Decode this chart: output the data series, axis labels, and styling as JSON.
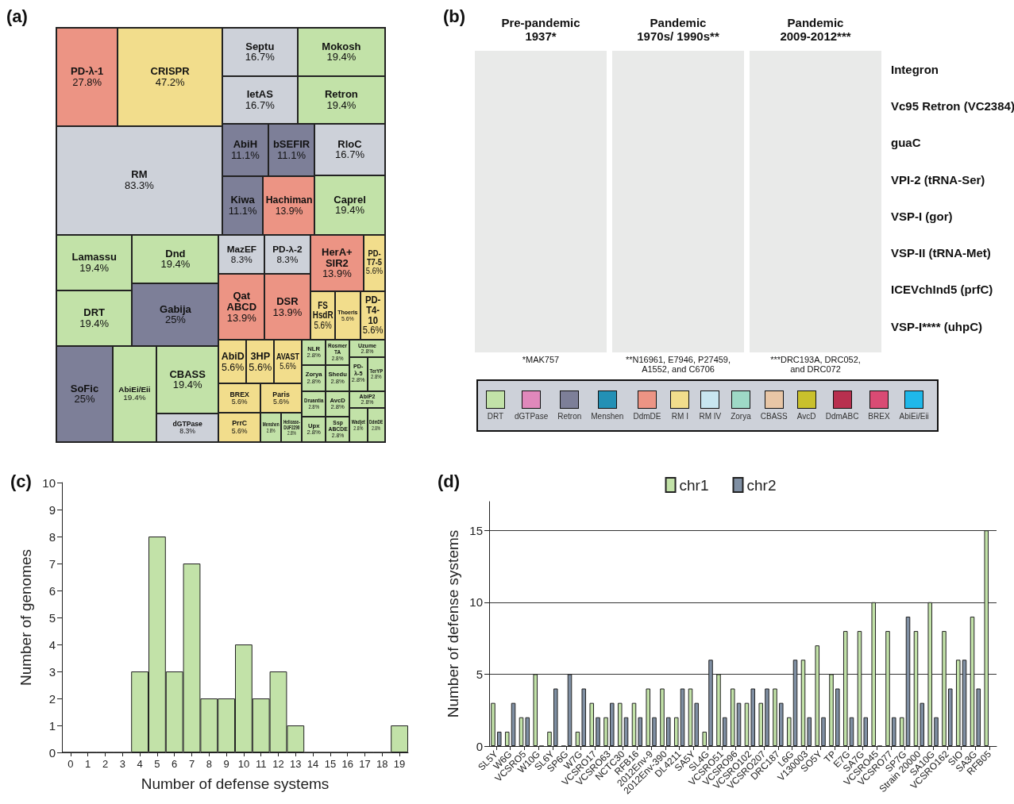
{
  "chart_data": [
    {
      "type": "other",
      "title": "(a)",
      "categories": [
        "PD-λ-1",
        "CRISPR",
        "RM",
        "Septu",
        "IetAS",
        "Mokosh",
        "Retron",
        "AbiH",
        "bSEFIR",
        "Kiwa",
        "Hachiman",
        "RloC",
        "Caprel",
        "Lamassu",
        "DRT",
        "Dnd",
        "Gabija",
        "SoFic",
        "AbiEi/Eii",
        "CBASS",
        "dGTPase",
        "MazEF",
        "PD-λ-2",
        "Qat ABCD",
        "DSR",
        "HerA+ SIR2",
        "PD-T7-5",
        "FS HsdR",
        "Thoeris",
        "PD-T4-10",
        "AbiD",
        "3HP",
        "AVAST",
        "BREX",
        "PrrC",
        "Paris",
        "Menshen",
        "Helicase-DUF2290",
        "NLR",
        "Rosmer TA",
        "Zorya",
        "Shedu",
        "Uzume",
        "PD-λ-5",
        "TerYP",
        "Druantia",
        "AvcD",
        "Upx",
        "Ssp ABCDE",
        "AbiP2",
        "Wadjet",
        "DdmDE"
      ],
      "values": [
        27.8,
        47.2,
        83.3,
        16.7,
        16.7,
        19.4,
        19.4,
        11.1,
        11.1,
        11.1,
        13.9,
        16.7,
        19.4,
        19.4,
        19.4,
        19.4,
        25,
        25,
        19.4,
        19.4,
        8.3,
        8.3,
        8.3,
        13.9,
        13.9,
        13.9,
        5.6,
        5.6,
        5.6,
        5.6,
        5.6,
        5.6,
        5.6,
        5.6,
        5.6,
        5.6,
        2.8,
        2.8,
        2.8,
        2.8,
        2.8,
        2.8,
        2.8,
        2.8,
        2.8,
        2.8,
        2.8,
        2.8,
        2.8,
        2.8,
        2.8,
        2.8
      ],
      "value_labels": [
        "27.8%",
        "47.2%",
        "83.3%",
        "16.7%",
        "16.7%",
        "19.4%",
        "19.4%",
        "11.1%",
        "11.1%",
        "11.1%",
        "13.9%",
        "16.7%",
        "19.4%",
        "19.4%",
        "19.4%",
        "19.4%",
        "25%",
        "25%",
        "19.4%",
        "19.4%",
        "8.3%",
        "8.3%",
        "8.3%",
        "13.9%",
        "13.9%",
        "13.9%",
        "5.6%",
        "5.6%",
        "5.6%",
        "5.6%",
        "5.6%",
        "5.6%",
        "5.6%",
        "5.6%",
        "5.6%",
        "5.6%",
        "2.8%",
        "2.8%",
        "2.8%",
        "2.8%",
        "2.8%",
        "2.8%",
        "2.8%",
        "2.8%",
        "2.8%",
        "2.8%",
        "2.8%",
        "2.8%",
        "2.8%",
        "2.8%",
        "2.8%",
        "2.8%"
      ],
      "colors": [
        "#ec9484",
        "#f2dd8c",
        "#cdd1d9",
        "#cdd1d9",
        "#cdd1d9",
        "#c2e2a8",
        "#c2e2a8",
        "#7d7f98",
        "#7d7f98",
        "#7d7f98",
        "#ec9484",
        "#cdd1d9",
        "#c2e2a8",
        "#c2e2a8",
        "#c2e2a8",
        "#c2e2a8",
        "#7d7f98",
        "#7d7f98",
        "#c2e2a8",
        "#c2e2a8",
        "#cdd1d9",
        "#cdd1d9",
        "#cdd1d9",
        "#ec9484",
        "#ec9484",
        "#ec9484",
        "#f2dd8c",
        "#f2dd8c",
        "#f2dd8c",
        "#f2dd8c",
        "#f2dd8c",
        "#f2dd8c",
        "#f2dd8c",
        "#f2dd8c",
        "#f2dd8c",
        "#f2dd8c",
        "#c2e2a8",
        "#c2e2a8",
        "#c2e2a8",
        "#c2e2a8",
        "#c2e2a8",
        "#c2e2a8",
        "#c2e2a8",
        "#c2e2a8",
        "#c2e2a8",
        "#c2e2a8",
        "#c2e2a8",
        "#c2e2a8",
        "#c2e2a8",
        "#c2e2a8",
        "#c2e2a8",
        "#c2e2a8"
      ]
    },
    {
      "type": "other",
      "title": "(b)",
      "y_categories": [
        "Integron",
        "Vc95 Retron (VC2384)",
        "guaC",
        "VPI-2 (tRNA-Ser)",
        "VSP-I (gor)",
        "VSP-II (tRNA-Met)",
        "ICEVchInd5 (prfC)",
        "VSP-I**** (uhpC)"
      ],
      "annotations": [
        "Pre-pandemic\n1937*",
        "Pandemic\n1970s/ 1990s**",
        "Pandemic\n2009-2012***",
        "*MAK757",
        "**N16961, E7946, P27459,\nA1552, and C6706",
        "***DRC193A, DRC052,\nand DRC072"
      ],
      "categories": [
        "DRT",
        "dGTPase",
        "Retron",
        "Menshen",
        "DdmDE",
        "RM I",
        "RM IV",
        "Zorya",
        "CBASS",
        "AvcD",
        "DdmABC",
        "BREX",
        "AbiEi/Eii"
      ],
      "colors": [
        "#c2e2a8",
        "#e088bb",
        "#7d7f98",
        "#2390b5",
        "#ec9484",
        "#f2dd8c",
        "#c8e6f0",
        "#9ed9c6",
        "#e8c6a6",
        "#c9c02c",
        "#b8304f",
        "#d94b74",
        "#1fb8ea"
      ]
    },
    {
      "type": "bar",
      "title": "(c)",
      "xlabel": "Number of defense systems",
      "ylabel": "Number of genomes",
      "categories": [
        "0",
        "1",
        "2",
        "3",
        "4",
        "5",
        "6",
        "7",
        "8",
        "9",
        "10",
        "11",
        "12",
        "13",
        "14",
        "15",
        "16",
        "17",
        "18",
        "19"
      ],
      "values": [
        0,
        0,
        0,
        0,
        3,
        8,
        3,
        7,
        2,
        2,
        4,
        2,
        3,
        1,
        0,
        0,
        0,
        0,
        0,
        1
      ],
      "color": "#c2e2a8",
      "ylim": [
        0,
        10
      ],
      "yticks": [
        0,
        1,
        2,
        3,
        4,
        5,
        6,
        7,
        8,
        9,
        10
      ]
    },
    {
      "type": "bar",
      "title": "(d)",
      "ylabel": "Number of defense systems",
      "categories": [
        "SL5Y",
        "W6G",
        "VCSRO5",
        "W10G",
        "SL6Y",
        "SP6G",
        "W7G",
        "VCSRO17",
        "VCSRO63",
        "NCTC30",
        "RFB16",
        "2012Env-9",
        "2012Env-390",
        "DL4211",
        "SA5Y",
        "SL4G",
        "VCSRO51",
        "VCSRO96",
        "VCSRO102",
        "VCSRO207",
        "DRC187",
        "L6G",
        "V130003",
        "SO5Y",
        "TP",
        "E7G",
        "SA7G",
        "VCSRO45",
        "VCSRO77",
        "SP7G",
        "Strain 20000",
        "SA10G",
        "VCSRO162",
        "SIO",
        "SA3G",
        "RFB05"
      ],
      "series": [
        {
          "name": "chr1",
          "color": "#c2e2a8",
          "values": [
            3,
            1,
            2,
            5,
            1,
            0,
            1,
            3,
            2,
            3,
            3,
            4,
            4,
            2,
            4,
            1,
            5,
            4,
            3,
            3,
            4,
            2,
            6,
            7,
            5,
            8,
            8,
            10,
            8,
            2,
            8,
            10,
            8,
            6,
            9,
            15
          ]
        },
        {
          "name": "chr2",
          "color": "#7f8fa3",
          "values": [
            1,
            3,
            2,
            0,
            4,
            5,
            4,
            2,
            3,
            2,
            2,
            2,
            2,
            4,
            3,
            6,
            2,
            3,
            4,
            4,
            3,
            6,
            2,
            2,
            4,
            2,
            2,
            0,
            2,
            9,
            3,
            2,
            4,
            6,
            4,
            null
          ]
        }
      ],
      "ylim": [
        0,
        17
      ],
      "yticks": [
        0,
        5,
        10,
        15
      ],
      "grid": "y",
      "legend": "top"
    }
  ]
}
